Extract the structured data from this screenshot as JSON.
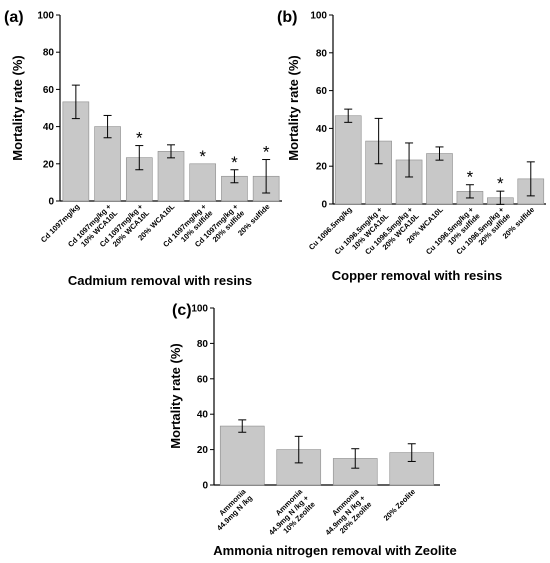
{
  "chart_data": [
    {
      "type": "bar",
      "panel_label": "(a)",
      "caption": "Cadmium removal with resins",
      "xlabel": "",
      "ylabel": "Mortality rate (%)",
      "ylim": [
        0,
        100
      ],
      "yticks": [
        "0",
        "20",
        "40",
        "60",
        "80",
        "100"
      ],
      "categories": [
        [
          "Cd 1097mg/kg"
        ],
        [
          "Cd 1097mg/kg +",
          "10% WCA10L"
        ],
        [
          "Cd 1097mg/kg +",
          "20% WCA10L"
        ],
        [
          "20% WCA10L"
        ],
        [
          "Cd 1097mg/kg +",
          "10% sulfide"
        ],
        [
          "Cd 1097mg/kg +",
          "20% sulfide"
        ],
        [
          "20% sulfide"
        ]
      ],
      "values": [
        53.3,
        40,
        23.3,
        26.7,
        20,
        13.3,
        13.3
      ],
      "errors": [
        9,
        6,
        6.5,
        3.5,
        0,
        3.5,
        9
      ],
      "significance": [
        "",
        "",
        "*",
        "",
        "*",
        "*",
        "*"
      ],
      "bar_color": "#c8c8c8",
      "grid": false
    },
    {
      "type": "bar",
      "panel_label": "(b)",
      "caption": "Copper removal with resins",
      "xlabel": "",
      "ylabel": "Mortality rate (%)",
      "ylim": [
        0,
        100
      ],
      "yticks": [
        "0",
        "20",
        "40",
        "60",
        "80",
        "100"
      ],
      "categories": [
        [
          "Cu 1096.5mg/kg"
        ],
        [
          "Cu 1096.5mg/kg +",
          "10% WCA10L"
        ],
        [
          "Cu 1096.5mg/kg +",
          "20% WCA10L"
        ],
        [
          "20% WCA10L"
        ],
        [
          "Cu 1096.5mg/kg +",
          "10% sulfide"
        ],
        [
          "Cu 1096.5mg/kg +",
          "20% sulfide"
        ],
        [
          "20% sulfide"
        ]
      ],
      "values": [
        46.7,
        33.3,
        23.3,
        26.7,
        6.7,
        3.3,
        13.3
      ],
      "errors": [
        3.5,
        12,
        9,
        3.5,
        3.5,
        3.5,
        9
      ],
      "significance": [
        "",
        "",
        "",
        "",
        "*",
        "*",
        ""
      ],
      "bar_color": "#c8c8c8",
      "grid": false
    },
    {
      "type": "bar",
      "panel_label": "(c)",
      "caption": "Ammonia nitrogen removal with Zeolite",
      "xlabel": "",
      "ylabel": "Mortality rate (%)",
      "ylim": [
        0,
        100
      ],
      "yticks": [
        "0",
        "20",
        "40",
        "60",
        "80",
        "100"
      ],
      "categories": [
        [
          "Ammonia",
          "44.9mg N /kg"
        ],
        [
          "Ammonia",
          "44.9mg N /kg +",
          "10% Zeolite"
        ],
        [
          "Ammonia",
          "44.9mg N /kg +",
          "20% Zeolite"
        ],
        [
          "20% Zeolite"
        ]
      ],
      "values": [
        33.3,
        20,
        15,
        18.3
      ],
      "errors": [
        3.5,
        7.5,
        5.5,
        5
      ],
      "significance": [
        "",
        "",
        "",
        ""
      ],
      "bar_color": "#c8c8c8",
      "grid": false
    }
  ]
}
